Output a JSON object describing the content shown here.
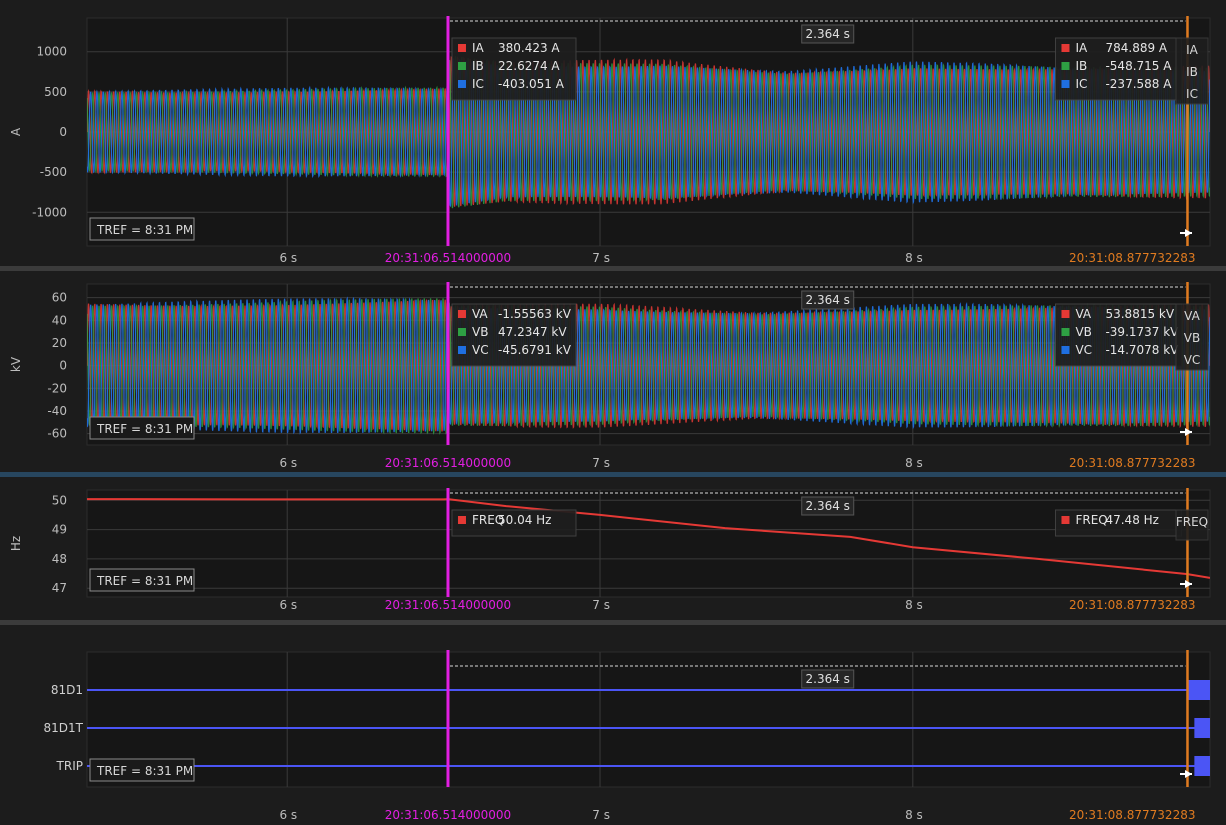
{
  "tref_label": "TREF = 8:31 PM",
  "cursor_a": {
    "label": "20:31:06.514000000",
    "color": "#e21fe2"
  },
  "cursor_b": {
    "label": "20:31:08.877732283",
    "color": "#e07b20"
  },
  "delta_label": "2.364 s",
  "colors": {
    "a": "#e53935",
    "b": "#2ea043",
    "c": "#1f6fe0",
    "digital": "#4b55f5",
    "bg": "#161616",
    "grid": "#3a3a3a"
  },
  "marker_icon": "pin-arrow-icon",
  "chart_data": [
    {
      "type": "line",
      "ylabel": "A",
      "yticks": [
        1000,
        500,
        0,
        -500,
        -1000
      ],
      "ylim": [
        -1420,
        1420
      ],
      "xticks": [
        6,
        7,
        8
      ],
      "xtick_labels": [
        "6 s",
        "7 s",
        "8 s"
      ],
      "xlim": [
        5.36,
        8.95
      ],
      "cursor_a_x": 6.514,
      "cursor_b_x": 8.878,
      "series": [
        {
          "name": "IA",
          "a_value": "380.423 A",
          "b_value": "784.889 A",
          "color": "#e53935"
        },
        {
          "name": "IB",
          "a_value": "22.6274 A",
          "b_value": "-548.715 A",
          "color": "#2ea043"
        },
        {
          "name": "IC",
          "a_value": "-403.051 A",
          "b_value": "-237.588 A",
          "color": "#1f6fe0"
        }
      ],
      "envelope": {
        "x": [
          5.36,
          6.51,
          6.52,
          6.7,
          7.2,
          7.6,
          8.0,
          8.5,
          8.95
        ],
        "amp": [
          520,
          520,
          900,
          820,
          880,
          770,
          840,
          760,
          780
        ]
      }
    },
    {
      "type": "line",
      "ylabel": "kV",
      "yticks": [
        60,
        40,
        20,
        0,
        -20,
        -40,
        -60
      ],
      "ylim": [
        -70,
        72
      ],
      "xticks": [
        6,
        7,
        8
      ],
      "xtick_labels": [
        "6 s",
        "7 s",
        "8 s"
      ],
      "xlim": [
        5.36,
        8.95
      ],
      "cursor_a_x": 6.514,
      "cursor_b_x": 8.878,
      "series": [
        {
          "name": "VA",
          "a_value": "-1.55563 kV",
          "b_value": "53.8815 kV",
          "color": "#e53935"
        },
        {
          "name": "VB",
          "a_value": "47.2347 kV",
          "b_value": "-39.1737 kV",
          "color": "#2ea043"
        },
        {
          "name": "VC",
          "a_value": "-45.6791 kV",
          "b_value": "-14.7078 kV",
          "color": "#1f6fe0"
        }
      ],
      "envelope": {
        "x": [
          5.36,
          6.51,
          6.52,
          7.0,
          7.5,
          8.0,
          8.5,
          8.95
        ],
        "amp": [
          56,
          56,
          50,
          52,
          48,
          52,
          50,
          51
        ]
      }
    },
    {
      "type": "line",
      "ylabel": "Hz",
      "yticks": [
        50,
        49,
        48,
        47
      ],
      "ylim": [
        46.7,
        50.35
      ],
      "xticks": [
        6,
        7,
        8
      ],
      "xtick_labels": [
        "6 s",
        "7 s",
        "8 s"
      ],
      "xlim": [
        5.36,
        8.95
      ],
      "cursor_a_x": 6.514,
      "cursor_b_x": 8.878,
      "series": [
        {
          "name": "FREQ",
          "a_value": "50.04 Hz",
          "b_value": "47.48 Hz",
          "color": "#e53935",
          "x": [
            5.36,
            6.0,
            6.5,
            6.514,
            6.7,
            7.0,
            7.4,
            7.8,
            8.0,
            8.4,
            8.878,
            8.95
          ],
          "y": [
            50.04,
            50.03,
            50.03,
            50.04,
            49.8,
            49.5,
            49.05,
            48.75,
            48.4,
            48.0,
            47.48,
            47.35
          ]
        }
      ]
    },
    {
      "type": "line",
      "ylabel": "",
      "xticks": [
        6,
        7,
        8
      ],
      "xtick_labels": [
        "6 s",
        "7 s",
        "8 s"
      ],
      "xlim": [
        5.36,
        8.95
      ],
      "cursor_a_x": 6.514,
      "cursor_b_x": 8.878,
      "series": [
        {
          "name": "81D1",
          "asserted_from": 8.88
        },
        {
          "name": "81D1T",
          "asserted_from": 8.9
        },
        {
          "name": "TRIP",
          "asserted_from": 8.9
        }
      ]
    }
  ]
}
